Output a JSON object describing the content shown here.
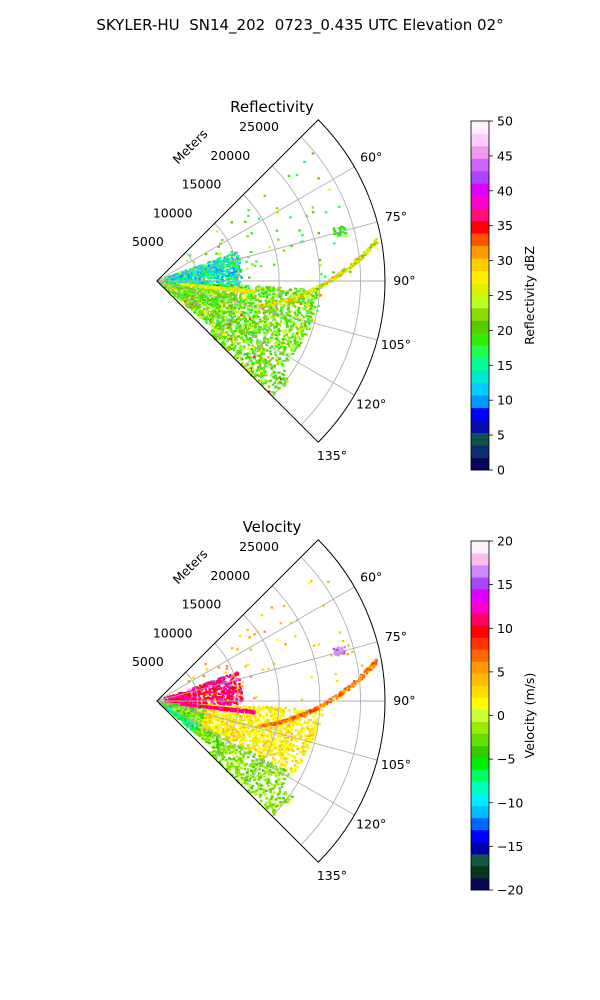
{
  "title": "SKYLER-HU  SN14_202  0723_0.435 UTC Elevation 02°",
  "chart_data": [
    {
      "type": "polar-ppi",
      "title": "Reflectivity",
      "range_label": "Meters",
      "range_ticks": [
        "5000",
        "10000",
        "15000",
        "20000",
        "25000"
      ],
      "range_values": [
        5000,
        10000,
        15000,
        20000,
        25000
      ],
      "range_max": 28000,
      "azimuth_range": [
        45,
        135
      ],
      "azimuth_ticks": [
        "60°",
        "75°",
        "90°",
        "105°",
        "120°",
        "135°"
      ],
      "azimuth_values": [
        60,
        75,
        90,
        105,
        120,
        135
      ],
      "colorbar": {
        "label": "Reflectivity dBZ",
        "range": [
          0,
          50
        ],
        "ticks": [
          "0",
          "5",
          "10",
          "15",
          "20",
          "25",
          "30",
          "35",
          "40",
          "45",
          "50"
        ],
        "tick_values": [
          0,
          5,
          10,
          15,
          20,
          25,
          30,
          35,
          40,
          45,
          50
        ],
        "colors": [
          "#08075a",
          "#0b2f6b",
          "#11504a",
          "#0a0aa8",
          "#0000ff",
          "#0099ff",
          "#00ccff",
          "#00e6d0",
          "#00ff99",
          "#22ff55",
          "#33ee00",
          "#55cc00",
          "#88dd00",
          "#bbff22",
          "#ddee00",
          "#ffee00",
          "#ffcc00",
          "#ff9900",
          "#ff5500",
          "#ff0000",
          "#ff1177",
          "#ff00cc",
          "#dd00ff",
          "#aa44ff",
          "#cc66ff",
          "#ee99ee",
          "#ffccff",
          "#fff0ff"
        ]
      }
    },
    {
      "type": "polar-ppi",
      "title": "Velocity",
      "range_label": "Meters",
      "range_ticks": [
        "5000",
        "10000",
        "15000",
        "20000",
        "25000"
      ],
      "range_values": [
        5000,
        10000,
        15000,
        20000,
        25000
      ],
      "range_max": 28000,
      "azimuth_range": [
        45,
        135
      ],
      "azimuth_ticks": [
        "60°",
        "75°",
        "90°",
        "105°",
        "120°",
        "135°"
      ],
      "azimuth_values": [
        60,
        75,
        90,
        105,
        120,
        135
      ],
      "colorbar": {
        "label": "Velocity (m/s)",
        "range": [
          -20,
          20
        ],
        "ticks": [
          "−20",
          "−15",
          "−10",
          "−5",
          "0",
          "5",
          "10",
          "15",
          "20"
        ],
        "tick_values": [
          -20,
          -15,
          -10,
          -5,
          0,
          5,
          10,
          15,
          20
        ],
        "colors": [
          "#08075a",
          "#0b3320",
          "#115544",
          "#0000aa",
          "#0000ff",
          "#0066ff",
          "#00bbff",
          "#00eeff",
          "#00ffbb",
          "#00ff66",
          "#00ee00",
          "#33cc00",
          "#66dd00",
          "#99ee00",
          "#ccff33",
          "#ffff00",
          "#ffdd00",
          "#ffbb00",
          "#ff9900",
          "#ff6600",
          "#ff3300",
          "#ff0000",
          "#ff0066",
          "#ff00cc",
          "#dd00ff",
          "#aa44ff",
          "#cc88ff",
          "#ffbbee",
          "#fff0ff"
        ]
      }
    }
  ]
}
